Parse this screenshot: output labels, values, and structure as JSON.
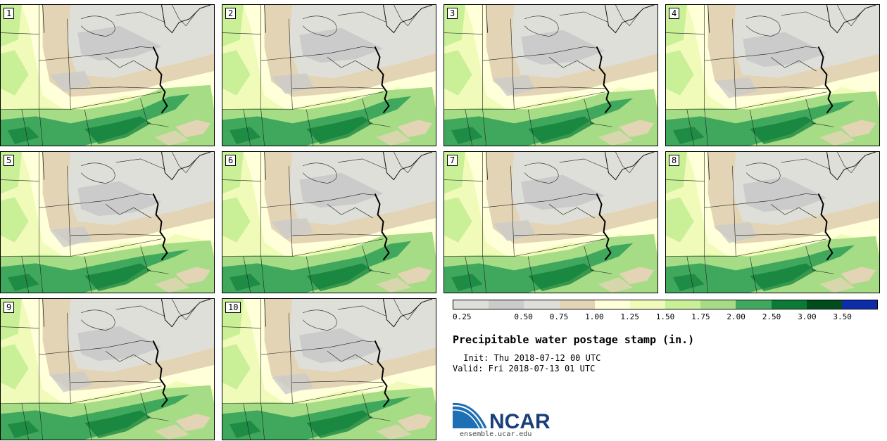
{
  "panels": [
    {
      "label": "1"
    },
    {
      "label": "2"
    },
    {
      "label": "3"
    },
    {
      "label": "4"
    },
    {
      "label": "5"
    },
    {
      "label": "6"
    },
    {
      "label": "7"
    },
    {
      "label": "8"
    },
    {
      "label": "9"
    },
    {
      "label": "10"
    }
  ],
  "legend": {
    "colors": [
      "#dfdfd9",
      "#cbcbcb",
      "#dfdfd9",
      "#e3d4b6",
      "#ffffd9",
      "#f1fbb9",
      "#c9ef97",
      "#a6dc85",
      "#40a85d",
      "#0a7a36",
      "#004c1d",
      "#0c2ca8"
    ],
    "labels": [
      "0.25",
      "0.50",
      "0.75",
      "1.00",
      "1.25",
      "1.50",
      "1.75",
      "2.00",
      "2.50",
      "3.00",
      "3.50"
    ]
  },
  "title": "Precipitable water postage stamp (in.)",
  "init": " Init: Thu 2018-07-12 00 UTC",
  "valid": "Valid: Fri 2018-07-13 01 UTC",
  "logo": {
    "text": "NCAR",
    "url_text": "ensemble.ucar.edu",
    "colors": {
      "blue": "#1f6fb5",
      "text": "#1a3f7a"
    }
  }
}
